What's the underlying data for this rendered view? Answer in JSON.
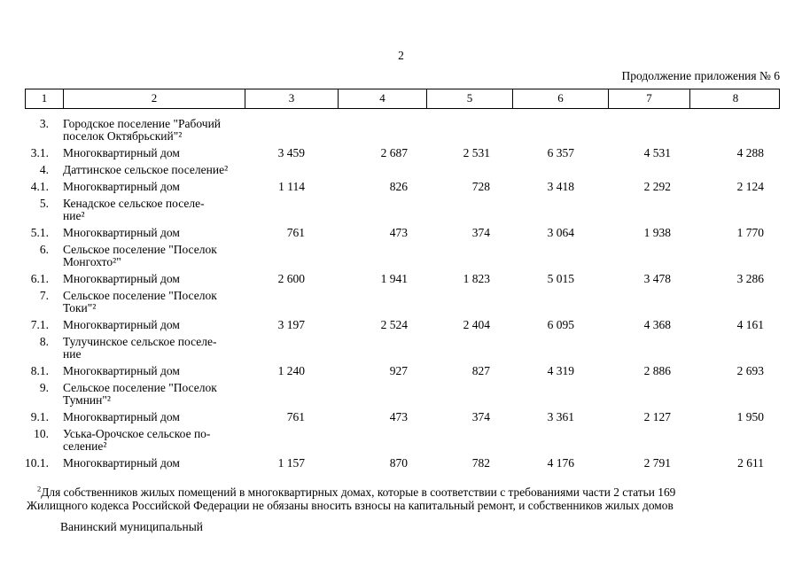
{
  "page": {
    "number": "2",
    "continuation_note": "Продолжение приложения № 6"
  },
  "table": {
    "header_cells": [
      "1",
      "2",
      "3",
      "4",
      "5",
      "6",
      "7",
      "8"
    ],
    "rows": [
      {
        "num": "3.",
        "name_lines": [
          "Городское поселение \"Рабочий",
          "поселок Октябрьский\"²"
        ],
        "values": []
      },
      {
        "num": "3.1.",
        "name_lines": [
          "Многоквартирный дом"
        ],
        "values": [
          "3 459",
          "2 687",
          "2 531",
          "6 357",
          "4 531",
          "4 288"
        ]
      },
      {
        "num": "4.",
        "name_lines": [
          "Даттинское сельское поселение²"
        ],
        "values": []
      },
      {
        "num": "4.1.",
        "name_lines": [
          "Многоквартирный дом"
        ],
        "values": [
          "1 114",
          "826",
          "728",
          "3 418",
          "2 292",
          "2 124"
        ]
      },
      {
        "num": "5.",
        "name_lines": [
          "Кенадское сельское поселе-",
          "ние²"
        ],
        "values": []
      },
      {
        "num": "5.1.",
        "name_lines": [
          "Многоквартирный дом"
        ],
        "values": [
          "761",
          "473",
          "374",
          "3 064",
          "1 938",
          "1 770"
        ]
      },
      {
        "num": "6.",
        "name_lines": [
          "Сельское поселение \"Поселок",
          "Монгохто²\""
        ],
        "values": []
      },
      {
        "num": "6.1.",
        "name_lines": [
          "Многоквартирный дом"
        ],
        "values": [
          "2 600",
          "1 941",
          "1 823",
          "5 015",
          "3 478",
          "3 286"
        ]
      },
      {
        "num": "7.",
        "name_lines": [
          "Сельское поселение \"Поселок",
          "Токи\"²"
        ],
        "values": []
      },
      {
        "num": "7.1.",
        "name_lines": [
          "Многоквартирный дом"
        ],
        "values": [
          "3 197",
          "2 524",
          "2 404",
          "6 095",
          "4 368",
          "4 161"
        ]
      },
      {
        "num": "8.",
        "name_lines": [
          "Тулучинское сельское поселе-",
          "ние"
        ],
        "values": []
      },
      {
        "num": "8.1.",
        "name_lines": [
          "Многоквартирный дом"
        ],
        "values": [
          "1 240",
          "927",
          "827",
          "4 319",
          "2 886",
          "2 693"
        ]
      },
      {
        "num": "9.",
        "name_lines": [
          "Сельское поселение \"Поселок",
          "Тумнин\"²"
        ],
        "values": []
      },
      {
        "num": "9.1.",
        "name_lines": [
          "Многоквартирный дом"
        ],
        "values": [
          "761",
          "473",
          "374",
          "3 361",
          "2 127",
          "1 950"
        ]
      },
      {
        "num": "10.",
        "name_lines": [
          "Уська-Орочское сельское по-",
          "селение²"
        ],
        "values": []
      },
      {
        "num": "10.1.",
        "name_lines": [
          "Многоквартирный дом"
        ],
        "values": [
          "1 157",
          "870",
          "782",
          "4 176",
          "2 791",
          "2 611"
        ]
      }
    ]
  },
  "footnote": {
    "marker": "2",
    "lines": [
      "Для собственников жилых помещений в многоквартирных домах, которые в соответствии с требованиями части 2 статьи 169",
      "Жилищного кодекса Российской Федерации не обязаны вносить взносы на капитальный ремонт, и собственников жилых домов"
    ]
  },
  "footer": {
    "text": "Ванинский муниципальный"
  }
}
